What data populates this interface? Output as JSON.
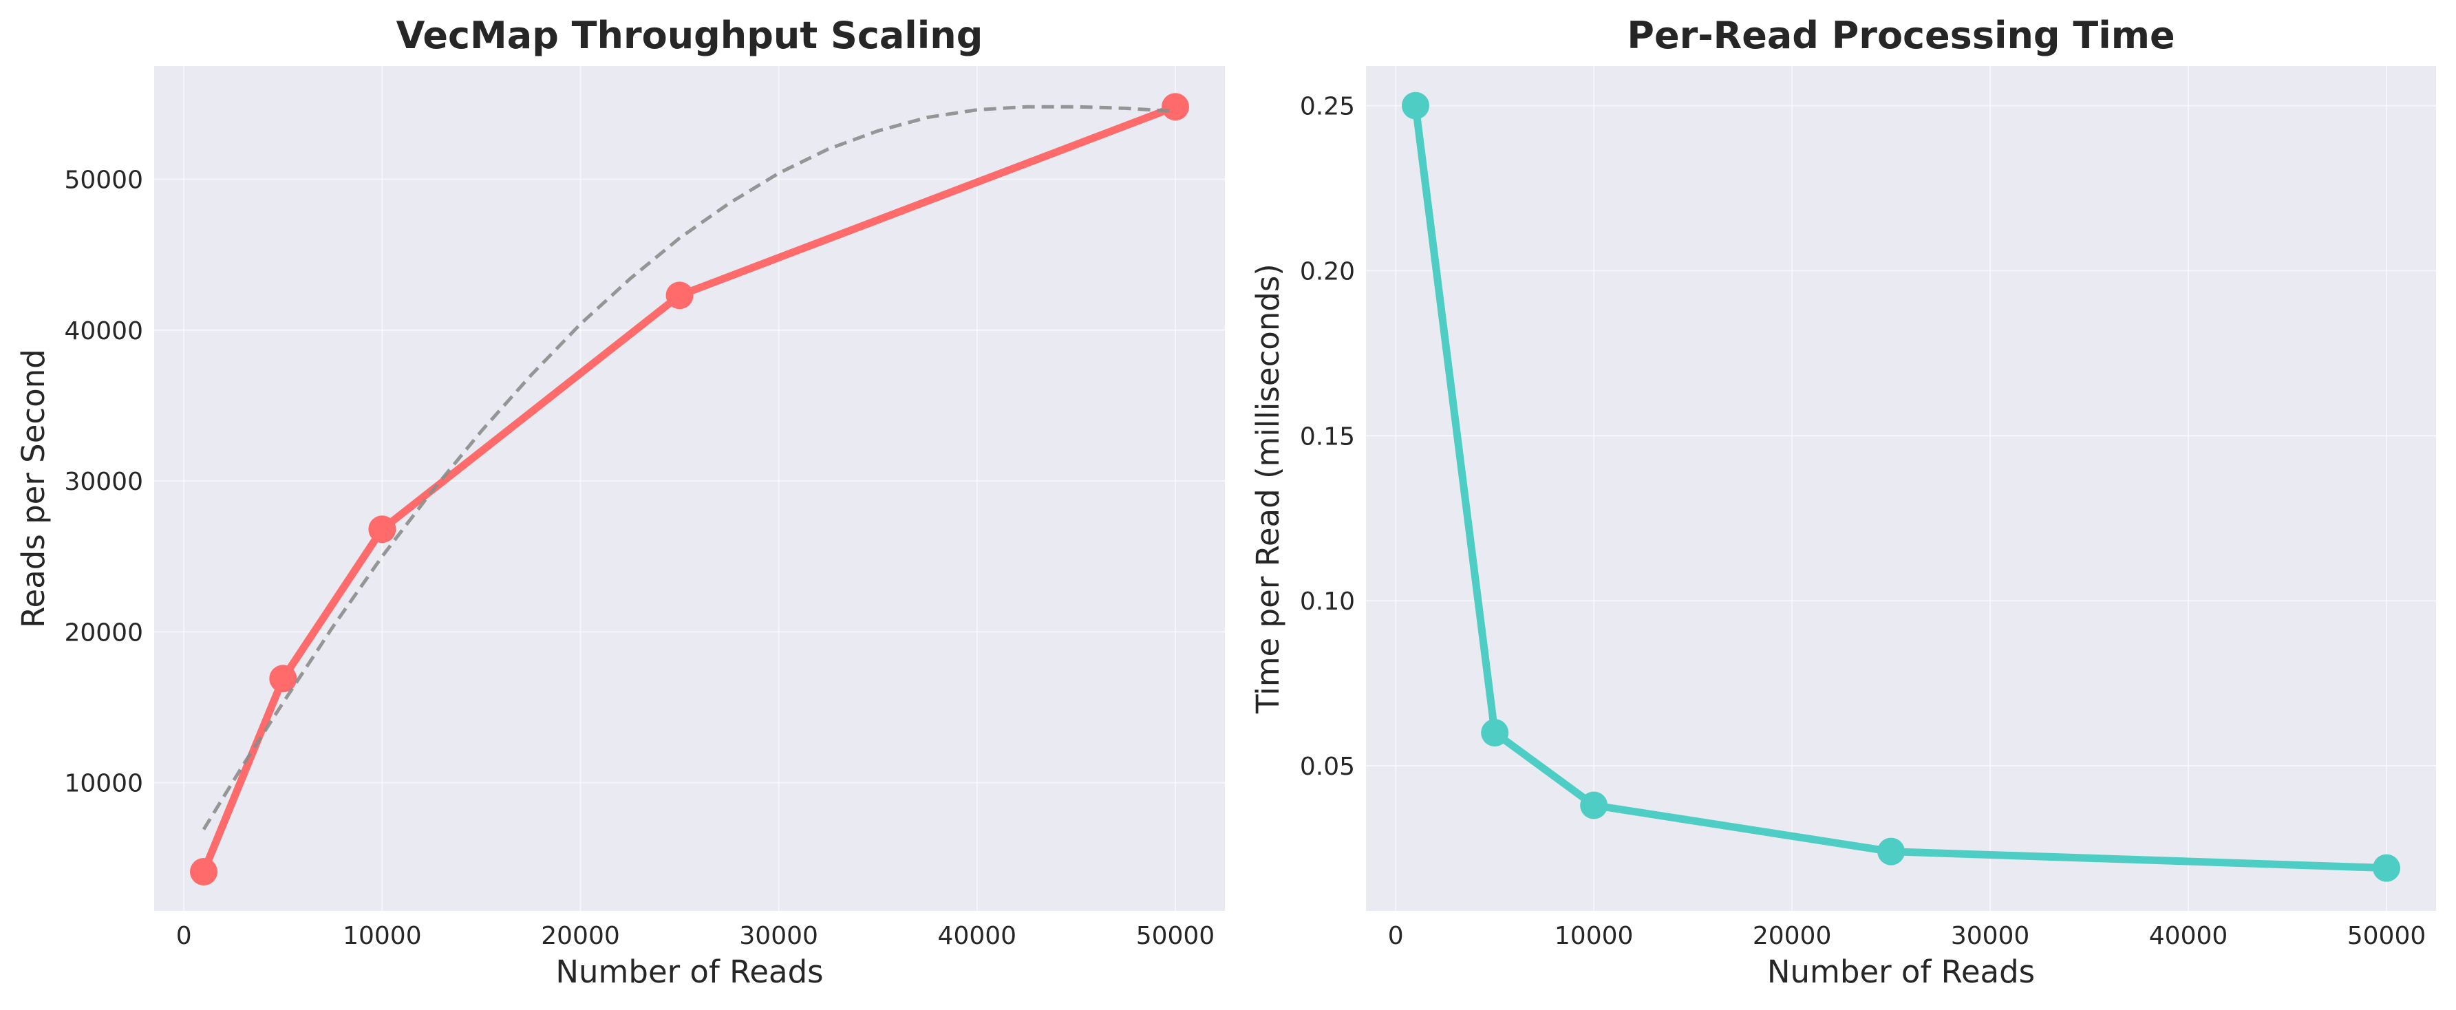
{
  "chart_data": [
    {
      "type": "line",
      "title": "VecMap Throughput Scaling",
      "xlabel": "Number of Reads",
      "ylabel": "Reads per Second",
      "xlim": [
        -1500,
        52500
      ],
      "ylim": [
        1500,
        57500
      ],
      "xticks": [
        0,
        10000,
        20000,
        30000,
        40000,
        50000
      ],
      "yticks": [
        10000,
        20000,
        30000,
        40000,
        50000
      ],
      "grid": true,
      "series": [
        {
          "style": "solid-markers",
          "color": "#FF6B6B",
          "x": [
            1000,
            5000,
            10000,
            25000,
            50000
          ],
          "y": [
            4100,
            16900,
            26800,
            42300,
            54800
          ]
        },
        {
          "style": "dashed-fit",
          "color": "#8C8C8C",
          "x": [
            1000,
            3000,
            5000,
            7500,
            10000,
            12500,
            15000,
            17500,
            20000,
            22500,
            25000,
            27500,
            30000,
            32500,
            35000,
            37500,
            40000,
            42500,
            45000,
            47500,
            50000
          ],
          "y": [
            6900,
            11200,
            15300,
            20300,
            25000,
            29300,
            33300,
            37000,
            40400,
            43400,
            46100,
            48400,
            50400,
            52000,
            53200,
            54100,
            54600,
            54800,
            54800,
            54700,
            54500
          ]
        }
      ]
    },
    {
      "type": "line",
      "title": "Per-Read Processing Time",
      "xlabel": "Number of Reads",
      "ylabel": "Time per Read (milliseconds)",
      "xlim": [
        -1500,
        52500
      ],
      "ylim": [
        0.006,
        0.262
      ],
      "xticks": [
        0,
        10000,
        20000,
        30000,
        40000,
        50000
      ],
      "yticks": [
        0.05,
        0.1,
        0.15,
        0.2,
        0.25
      ],
      "grid": true,
      "series": [
        {
          "style": "solid-markers",
          "color": "#4ECDC4",
          "x": [
            1000,
            5000,
            10000,
            25000,
            50000
          ],
          "y": [
            0.25,
            0.06,
            0.038,
            0.024,
            0.019
          ]
        }
      ]
    }
  ]
}
